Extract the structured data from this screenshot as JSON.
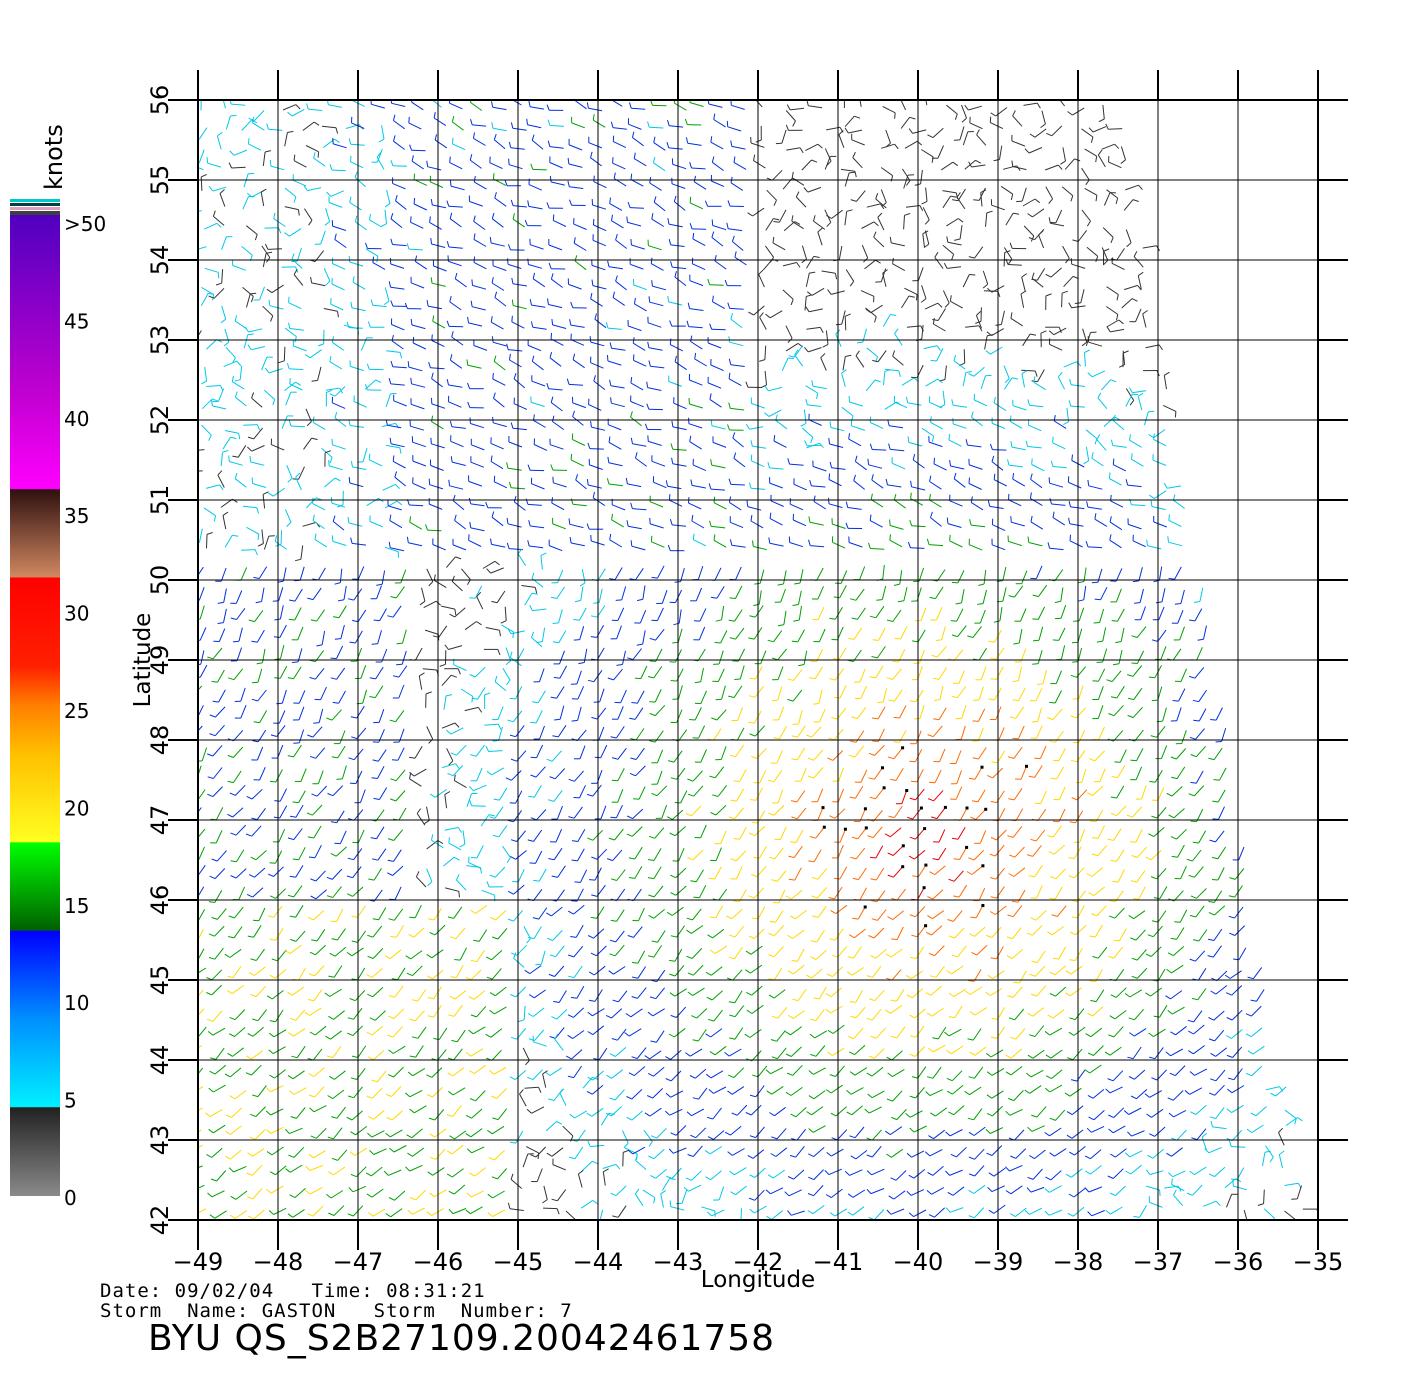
{
  "map": {
    "x_axis_label": "Longitude",
    "y_axis_label": "Latitude",
    "lon_ticks": [
      "−49",
      "−48",
      "−47",
      "−46",
      "−45",
      "−44",
      "−43",
      "−42",
      "−41",
      "−40",
      "−39",
      "−38",
      "−37",
      "−36",
      "−35"
    ],
    "lat_ticks": [
      "42",
      "43",
      "44",
      "45",
      "46",
      "47",
      "48",
      "49",
      "50",
      "51",
      "52",
      "53",
      "54",
      "55",
      "56"
    ],
    "lon_range": [
      -49,
      -35
    ],
    "lat_range": [
      42,
      56
    ],
    "grid": true
  },
  "legend": {
    "unit": "knots",
    "labels": [
      ">50",
      "45",
      "40",
      "35",
      "30",
      "25",
      "20",
      "15",
      "10",
      "5",
      "0"
    ],
    "colors": {
      "calm": "#333333",
      "light": "#00c8e8",
      "moderate": "#0030e0",
      "fresh": "#00a000",
      "strong": "#ffd800",
      "gale": "#ff6a00",
      "storm": "#e80000",
      "severe": "#000000"
    }
  },
  "info": {
    "line1": "Date: 09/02/04   Time: 08:31:21",
    "line2": "Storm  Name: GASTON   Storm  Number: 7",
    "title": "BYU  QS_S2B27109.20042461758"
  }
}
